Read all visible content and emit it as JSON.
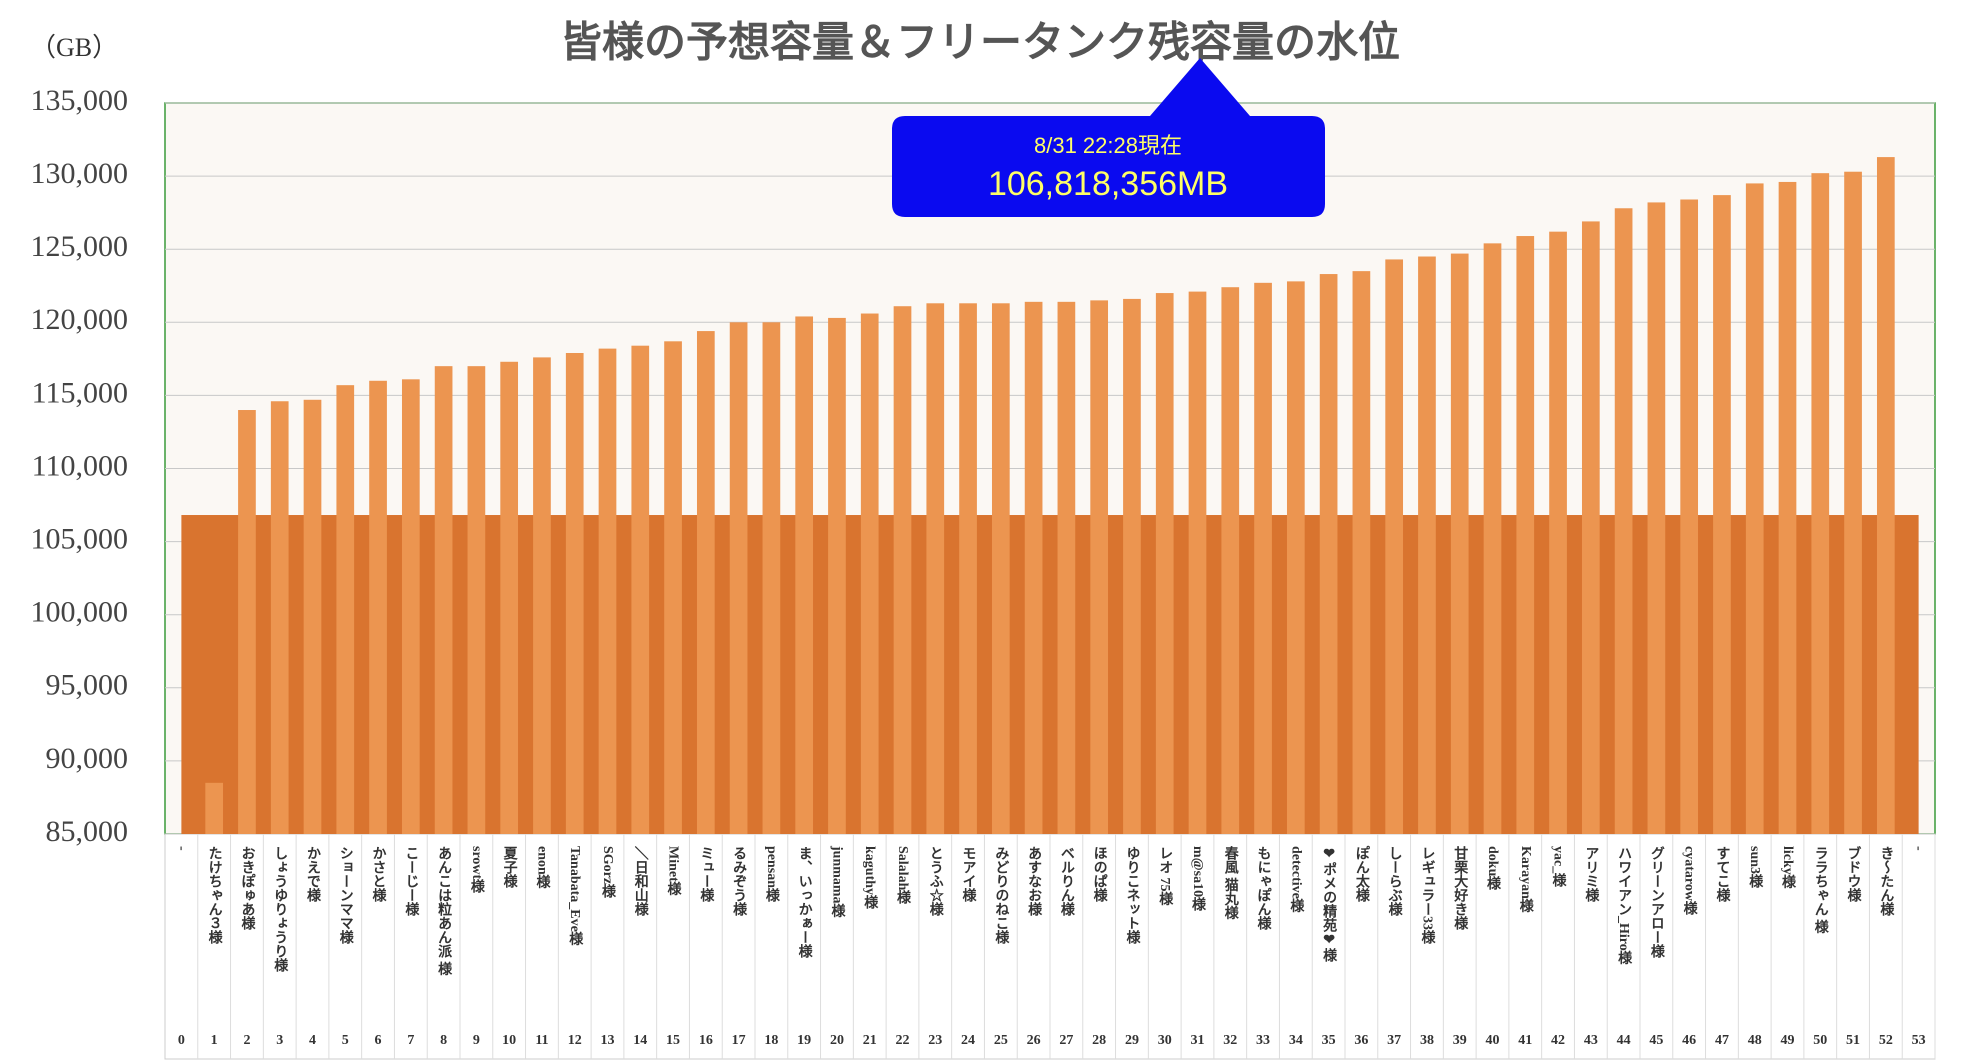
{
  "chart_data": {
    "type": "bar",
    "title": "皆様の予想容量＆フリータンク残容量の水位",
    "y_axis_label": "（GB）",
    "categories": [
      "-",
      "たけちゃん３様",
      "おきぽゅあ様",
      "しょうゆりょうり様",
      "かえで様",
      "ショーンママ様",
      "かさと様",
      "こーじー様",
      "あんこは粒あん派 様",
      "srowt様",
      "夏子様",
      "enon様",
      "Tanabata_Eve様",
      "SGorz様",
      "＼日和山様",
      "Minet様",
      "ミュー様",
      "るみぞう様",
      "pensan様",
      "ま、いっかぁー様",
      "junmama様",
      "kaguthy様",
      "Salalah様",
      "とうふ☆様",
      "モアイ様",
      "みどりのねこ様",
      "あすなお様",
      "ベルりん様",
      "ほのぱ様",
      "ゆりこネット様",
      "レオ 75様",
      "m@sa10様",
      "春風 猫丸様",
      "もにゃぽん様",
      "detective様",
      "❤ポメの精苑❤様",
      "ぽん太様",
      "しーらぶ様",
      "レギュラー33様",
      "甘栗大好き様",
      "doku様",
      "Karayan様",
      "yac_様",
      "アリミ様",
      "ハワイアン_Hiro様",
      "グリーンアロー様",
      "cyatarow様",
      "すてこ様",
      "sun3様",
      "licky様",
      "ララちゃん 様",
      "ブドウ様",
      "き～たん様",
      "-"
    ],
    "category_numbers": [
      0,
      1,
      2,
      3,
      4,
      5,
      6,
      7,
      8,
      9,
      10,
      11,
      12,
      13,
      14,
      15,
      16,
      17,
      18,
      19,
      20,
      21,
      22,
      23,
      24,
      25,
      26,
      27,
      28,
      29,
      30,
      31,
      32,
      33,
      34,
      35,
      36,
      37,
      38,
      39,
      40,
      41,
      42,
      43,
      44,
      45,
      46,
      47,
      48,
      49,
      50,
      51,
      52,
      53
    ],
    "values": [
      null,
      88500,
      114000,
      114600,
      114700,
      115700,
      116000,
      116100,
      117000,
      117000,
      117300,
      117600,
      117900,
      118200,
      118400,
      118700,
      119400,
      120000,
      120000,
      120400,
      120300,
      120600,
      121100,
      121300,
      121300,
      121300,
      121400,
      121400,
      121500,
      121600,
      122000,
      122100,
      122400,
      122700,
      122800,
      123300,
      123500,
      124300,
      124500,
      124700,
      125400,
      125900,
      126200,
      126900,
      127800,
      128200,
      128400,
      128700,
      129500,
      129600,
      130200,
      130300,
      131300,
      null
    ],
    "color": "#ec9550",
    "water_level": {
      "value": 106818.356,
      "color": "#d9742f",
      "label": "8/31 22:28現在",
      "value_label": "106,818,356MB"
    },
    "ylim": [
      85000,
      135000
    ],
    "yticks": [
      {
        "value": 85000,
        "label": "85,000"
      },
      {
        "value": 90000,
        "label": "90,000"
      },
      {
        "value": 95000,
        "label": "95,000"
      },
      {
        "value": 100000,
        "label": "100,000"
      },
      {
        "value": 105000,
        "label": "105,000"
      },
      {
        "value": 110000,
        "label": "110,000"
      },
      {
        "value": 115000,
        "label": "115,000"
      },
      {
        "value": 120000,
        "label": "120,000"
      },
      {
        "value": 125000,
        "label": "125,000"
      },
      {
        "value": 130000,
        "label": "130,000"
      },
      {
        "value": 135000,
        "label": "135,000"
      }
    ],
    "grid": true
  }
}
